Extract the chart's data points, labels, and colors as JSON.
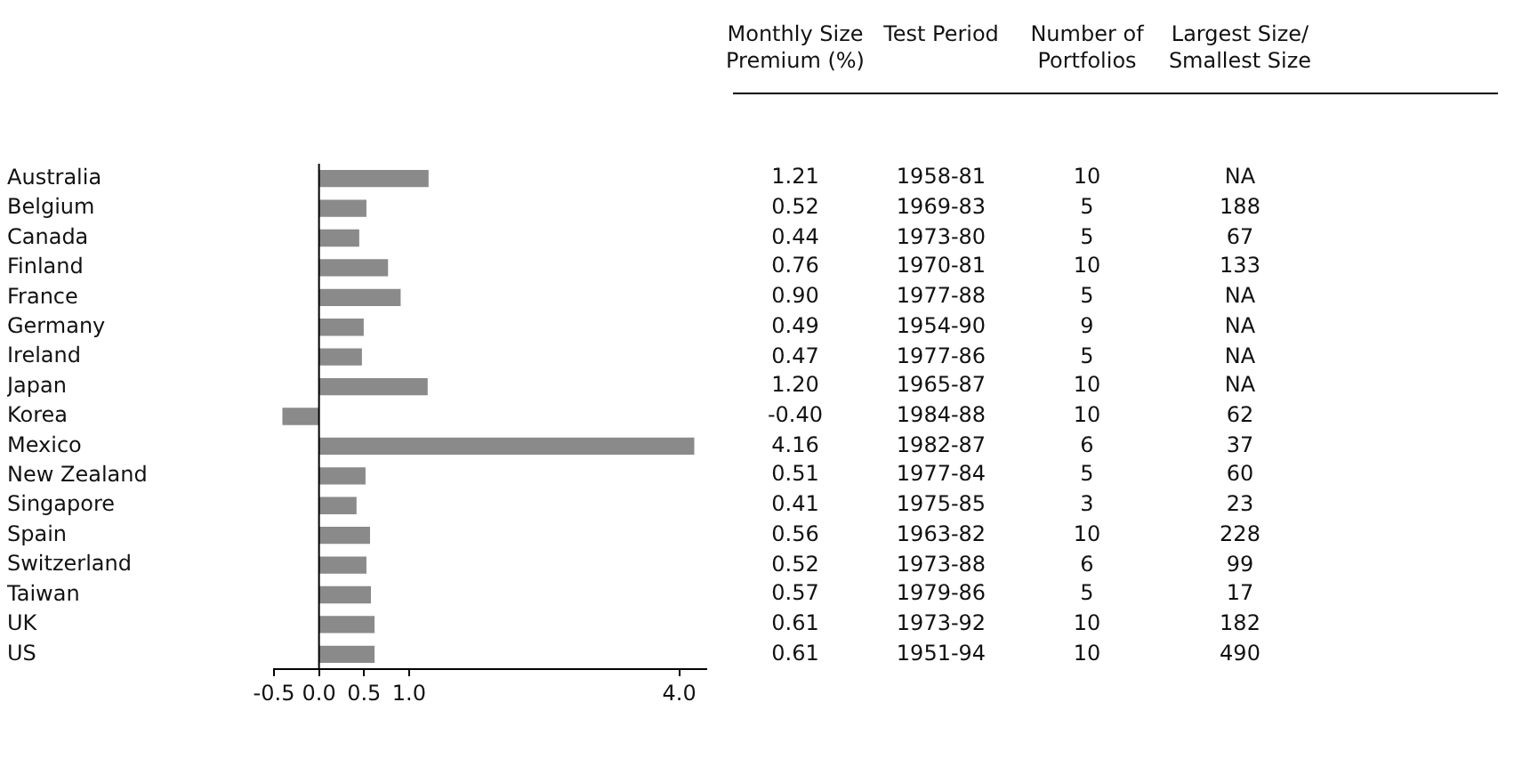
{
  "chart_data": [
    {
      "type": "bar",
      "orientation": "horizontal",
      "categories": [
        "Australia",
        "Belgium",
        "Canada",
        "Finland",
        "France",
        "Germany",
        "Ireland",
        "Japan",
        "Korea",
        "Mexico",
        "New Zealand",
        "Singapore",
        "Spain",
        "Switzerland",
        "Taiwan",
        "UK",
        "US"
      ],
      "values": [
        1.21,
        0.52,
        0.44,
        0.76,
        0.9,
        0.49,
        0.47,
        1.2,
        -0.4,
        4.16,
        0.51,
        0.41,
        0.56,
        0.52,
        0.57,
        0.61,
        0.61
      ],
      "color": "#8a8a8a",
      "xlim": [
        -0.5,
        4.3
      ],
      "xticks": [
        -0.5,
        {
          "value": 0,
          "label": "0.0"
        },
        0.5,
        {
          "value": 1,
          "label": "1.0"
        },
        {
          "value": 4,
          "label": "4.0"
        }
      ],
      "ref_lines": [
        {
          "axis": "x",
          "value": 0
        }
      ]
    },
    {
      "type": "other",
      "categories": [
        "Monthly Size Premium (%)",
        "Test Period",
        "Number of Portfolios",
        "Largest Size/ Smallest Size"
      ],
      "cell_labels": [
        [
          "1.21",
          "1958-81",
          "10",
          "NA"
        ],
        [
          "0.52",
          "1969-83",
          "5",
          "188"
        ],
        [
          "0.44",
          "1973-80",
          "5",
          "67"
        ],
        [
          "0.76",
          "1970-81",
          "10",
          "133"
        ],
        [
          "0.90",
          "1977-88",
          "5",
          "NA"
        ],
        [
          "0.49",
          "1954-90",
          "9",
          "NA"
        ],
        [
          "0.47",
          "1977-86",
          "5",
          "NA"
        ],
        [
          "1.20",
          "1965-87",
          "10",
          "NA"
        ],
        [
          "-0.40",
          "1984-88",
          "10",
          "62"
        ],
        [
          "4.16",
          "1982-87",
          "6",
          "37"
        ],
        [
          "0.51",
          "1977-84",
          "5",
          "60"
        ],
        [
          "0.41",
          "1975-85",
          "3",
          "23"
        ],
        [
          "0.56",
          "1963-82",
          "10",
          "228"
        ],
        [
          "0.52",
          "1973-88",
          "6",
          "99"
        ],
        [
          "0.57",
          "1979-86",
          "5",
          "17"
        ],
        [
          "0.61",
          "1973-92",
          "10",
          "182"
        ],
        [
          "0.61",
          "1951-94",
          "10",
          "490"
        ]
      ]
    }
  ]
}
